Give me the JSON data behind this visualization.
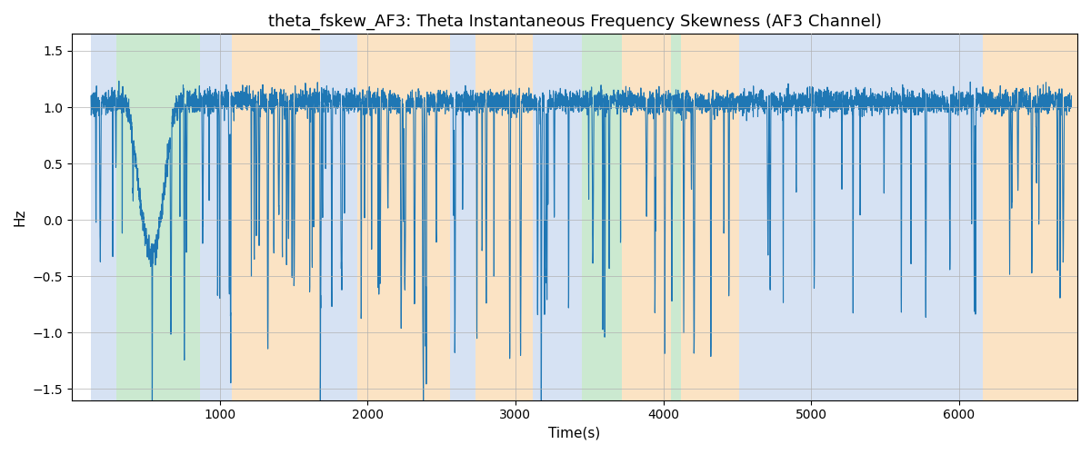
{
  "title": "theta_fskew_AF3: Theta Instantaneous Frequency Skewness (AF3 Channel)",
  "xlabel": "Time(s)",
  "ylabel": "Hz",
  "xlim": [
    0,
    6800
  ],
  "ylim": [
    -1.6,
    1.65
  ],
  "line_color": "#1f77b4",
  "line_width": 0.8,
  "background_color": "#ffffff",
  "grid_color": "#b0b0b0",
  "title_fontsize": 13,
  "label_fontsize": 11,
  "tick_fontsize": 10,
  "figsize": [
    12,
    5
  ],
  "dpi": 100,
  "bg_bands": [
    {
      "xstart": 130,
      "xend": 300,
      "color": "#aec6e8",
      "alpha": 0.5
    },
    {
      "xstart": 300,
      "xend": 870,
      "color": "#98d4a3",
      "alpha": 0.5
    },
    {
      "xstart": 870,
      "xend": 1080,
      "color": "#aec6e8",
      "alpha": 0.5
    },
    {
      "xstart": 1080,
      "xend": 1680,
      "color": "#f9c98a",
      "alpha": 0.5
    },
    {
      "xstart": 1680,
      "xend": 1930,
      "color": "#aec6e8",
      "alpha": 0.5
    },
    {
      "xstart": 1930,
      "xend": 2560,
      "color": "#f9c98a",
      "alpha": 0.5
    },
    {
      "xstart": 2560,
      "xend": 2730,
      "color": "#aec6e8",
      "alpha": 0.5
    },
    {
      "xstart": 2730,
      "xend": 3120,
      "color": "#f9c98a",
      "alpha": 0.5
    },
    {
      "xstart": 3120,
      "xend": 3450,
      "color": "#aec6e8",
      "alpha": 0.5
    },
    {
      "xstart": 3450,
      "xend": 3720,
      "color": "#98d4a3",
      "alpha": 0.5
    },
    {
      "xstart": 3720,
      "xend": 4050,
      "color": "#f9c98a",
      "alpha": 0.5
    },
    {
      "xstart": 4050,
      "xend": 4120,
      "color": "#98d4a3",
      "alpha": 0.5
    },
    {
      "xstart": 4120,
      "xend": 4510,
      "color": "#f9c98a",
      "alpha": 0.5
    },
    {
      "xstart": 4510,
      "xend": 6160,
      "color": "#aec6e8",
      "alpha": 0.5
    },
    {
      "xstart": 6160,
      "xend": 6800,
      "color": "#f9c98a",
      "alpha": 0.5
    }
  ],
  "seed": 42,
  "n_points": 6700,
  "x_start": 130,
  "x_end": 6760
}
